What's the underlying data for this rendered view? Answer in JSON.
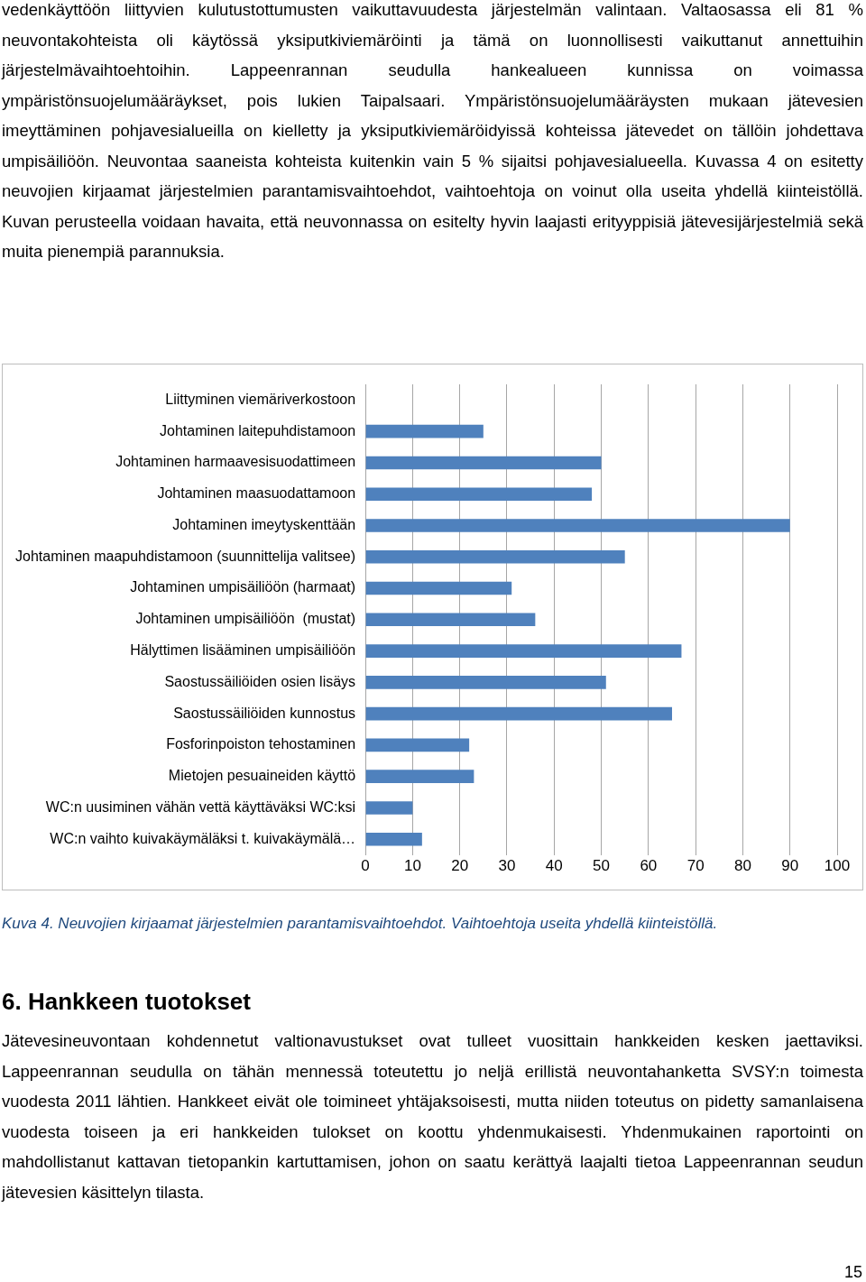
{
  "chart_data": {
    "type": "bar",
    "orientation": "horizontal",
    "categories": [
      "Liittyminen viemäriverkostoon",
      "Johtaminen laitepuhdistamoon",
      "Johtaminen harmaavesisuodattimeen",
      "Johtaminen maasuodattamoon",
      "Johtaminen imeytyskenttään",
      "Johtaminen maapuhdistamoon (suunnittelija valitsee)",
      "Johtaminen umpisäiliöön (harmaat)",
      "Johtaminen umpisäiliöön  (mustat)",
      "Hälyttimen lisääminen umpisäiliöön",
      "Saostussäiliöiden osien lisäys",
      "Saostussäiliöiden kunnostus",
      "Fosforinpoiston tehostaminen",
      "Mietojen pesuaineiden käyttö",
      "WC:n uusiminen vähän vettä käyttäväksi WC:ksi",
      "WC:n vaihto kuivakäymäläksi t. kuivakäymälä…"
    ],
    "values": [
      0,
      25,
      50,
      48,
      90,
      55,
      31,
      36,
      67,
      51,
      65,
      22,
      23,
      10,
      12
    ],
    "color": "#4f81bd",
    "xlim": [
      0,
      100
    ],
    "xticks": [
      0,
      10,
      20,
      30,
      40,
      50,
      60,
      70,
      80,
      90,
      100
    ],
    "grid": "x",
    "legend": false,
    "annotations": [
      "vedenkäyttöön liittyvien kulutustottumusten vaikuttavuudesta järjestelmän valintaan. Valtaosassa eli 81 % neuvontakohteista oli käytössä yksiputkiviemäröinti ja tämä on luonnollisesti vaikuttanut annettuihin järjestelmävaihtoehtoihin. Lappeenrannan seudulla hankealueen kunnissa on voimassa ympäristönsuojelumääräykset, pois lukien Taipalsaari. Ympäristönsuojelumääräysten mukaan jätevesien imeyttäminen pohjavesialueilla on kielletty ja yksiputkiviemäröidyissä kohteissa jätevedet on tällöin johdettava umpisäiliöön. Neuvontaa saaneista kohteista kuitenkin vain 5 % sijaitsi pohjavesialueella. Kuvassa 4 on esitetty neuvojien kirjaamat järjestelmien parantamisvaihtoehdot, vaihtoehtoja on voinut olla useita yhdellä kiinteistöllä. Kuvan perusteella voidaan havaita, että neuvonnassa on esitelty hyvin laajasti erityyppisiä jätevesijärjestelmiä sekä muita pienempiä parannuksia.",
      "Kuva 4. Neuvojien kirjaamat järjestelmien parantamisvaihtoehdot. Vaihtoehtoja useita yhdellä kiinteistöllä.",
      "6. Hankkeen tuotokset",
      "Jätevesineuvontaan kohdennetut valtionavustukset ovat tulleet vuosittain hankkeiden kesken jaettaviksi. Lappeenrannan seudulla on tähän mennessä toteutettu jo neljä erillistä neuvontahanketta SVSY:n toimesta vuodesta 2011 lähtien. Hankkeet eivät ole toimineet yhtäjaksoisesti, mutta niiden toteutus on pidetty samanlaisena vuodesta toiseen ja eri hankkeiden tulokset on koottu yhdenmukaisesti. Yhdenmukainen raportointi on mahdollistanut kattavan tietopankin kartuttamisen, johon on saatu kerättyä laajalti tietoa Lappeenrannan seudun jätevesien käsittelyn tilasta.",
      "15"
    ]
  }
}
